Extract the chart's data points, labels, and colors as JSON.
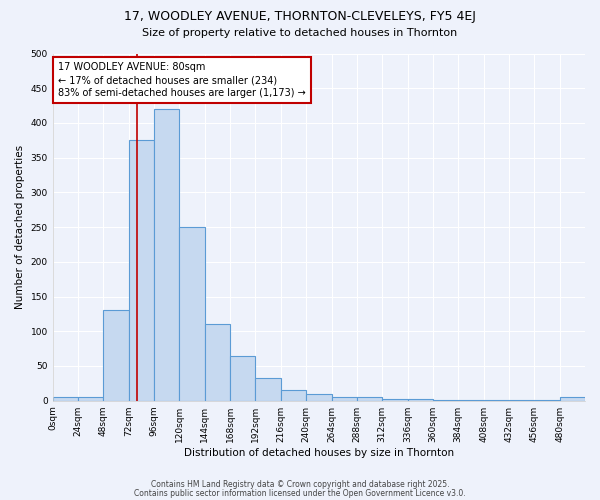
{
  "title": "17, WOODLEY AVENUE, THORNTON-CLEVELEYS, FY5 4EJ",
  "subtitle": "Size of property relative to detached houses in Thornton",
  "xlabel": "Distribution of detached houses by size in Thornton",
  "ylabel": "Number of detached properties",
  "bin_edges": [
    0,
    24,
    48,
    72,
    96,
    120,
    144,
    168,
    192,
    216,
    240,
    264,
    288,
    312,
    336,
    360,
    384,
    408,
    432,
    456,
    480,
    504
  ],
  "bar_heights": [
    5,
    5,
    130,
    375,
    420,
    250,
    110,
    65,
    33,
    15,
    10,
    6,
    5,
    2,
    2,
    1,
    1,
    1,
    1,
    1,
    5
  ],
  "bar_color": "#c6d9f0",
  "bar_edge_color": "#5b9bd5",
  "property_size": 80,
  "vline_color": "#c00000",
  "annotation_text": "17 WOODLEY AVENUE: 80sqm\n← 17% of detached houses are smaller (234)\n83% of semi-detached houses are larger (1,173) →",
  "annotation_box_edgecolor": "#c00000",
  "annotation_box_facecolor": "#ffffff",
  "ylim": [
    0,
    500
  ],
  "xlim": [
    0,
    504
  ],
  "yticks": [
    0,
    50,
    100,
    150,
    200,
    250,
    300,
    350,
    400,
    450,
    500
  ],
  "tick_labels": [
    "0sqm",
    "24sqm",
    "48sqm",
    "72sqm",
    "96sqm",
    "120sqm",
    "144sqm",
    "168sqm",
    "192sqm",
    "216sqm",
    "240sqm",
    "264sqm",
    "288sqm",
    "312sqm",
    "336sqm",
    "360sqm",
    "384sqm",
    "408sqm",
    "432sqm",
    "456sqm",
    "480sqm"
  ],
  "background_color": "#eef2fb",
  "grid_color": "#ffffff",
  "footer_line1": "Contains HM Land Registry data © Crown copyright and database right 2025.",
  "footer_line2": "Contains public sector information licensed under the Open Government Licence v3.0.",
  "title_fontsize": 9,
  "subtitle_fontsize": 8,
  "axis_label_fontsize": 7.5,
  "tick_fontsize": 6.5,
  "annotation_fontsize": 7,
  "footer_fontsize": 5.5
}
